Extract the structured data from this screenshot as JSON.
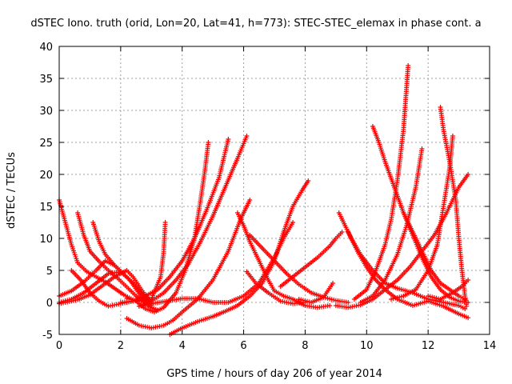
{
  "chart_data": {
    "type": "scatter",
    "title": "dSTEC Iono. truth (orid, Lon=20, Lat=41, h=773): STEC-STEC_elemax in phase cont. a",
    "xlabel": "GPS time / hours of day 206 of year 2014",
    "ylabel": "dSTEC  / TECUs",
    "xlim": [
      0,
      14
    ],
    "ylim": [
      -5,
      40
    ],
    "x_ticks": [
      "0",
      "2",
      "4",
      "6",
      "8",
      "10",
      "12",
      "14"
    ],
    "y_ticks": [
      "-5",
      "0",
      "5",
      "10",
      "15",
      "20",
      "25",
      "30",
      "35",
      "40"
    ],
    "grid": true,
    "marker": "+",
    "series": [
      {
        "color": "#ff0000",
        "points": [
          [
            0.0,
            16.0
          ],
          [
            0.2,
            12.5
          ],
          [
            0.4,
            9.0
          ],
          [
            0.6,
            6.2
          ],
          [
            0.9,
            4.8
          ],
          [
            1.2,
            4.0
          ],
          [
            1.5,
            3.2
          ],
          [
            1.8,
            2.2
          ],
          [
            2.1,
            1.2
          ],
          [
            2.4,
            0.4
          ]
        ]
      },
      {
        "color": "#ff0000",
        "points": [
          [
            0.6,
            14.0
          ],
          [
            0.8,
            10.5
          ],
          [
            1.0,
            8.0
          ],
          [
            1.3,
            6.4
          ],
          [
            1.6,
            5.0
          ],
          [
            1.9,
            3.8
          ],
          [
            2.2,
            2.4
          ],
          [
            2.5,
            1.0
          ],
          [
            2.8,
            0.0
          ]
        ]
      },
      {
        "color": "#ff0000",
        "points": [
          [
            1.1,
            12.5
          ],
          [
            1.3,
            9.5
          ],
          [
            1.5,
            7.5
          ],
          [
            1.8,
            5.8
          ],
          [
            2.1,
            4.4
          ],
          [
            2.4,
            3.0
          ],
          [
            2.7,
            1.2
          ],
          [
            3.0,
            0.2
          ]
        ]
      },
      {
        "color": "#ff0000",
        "points": [
          [
            0.0,
            1.0
          ],
          [
            0.4,
            1.8
          ],
          [
            0.8,
            3.2
          ],
          [
            1.2,
            5.0
          ],
          [
            1.5,
            6.5
          ],
          [
            1.8,
            5.8
          ],
          [
            2.1,
            4.4
          ],
          [
            2.4,
            3.0
          ],
          [
            2.7,
            1.2
          ],
          [
            3.0,
            -0.4
          ]
        ]
      },
      {
        "color": "#ff0000",
        "points": [
          [
            0.0,
            0.0
          ],
          [
            0.4,
            0.5
          ],
          [
            0.8,
            1.5
          ],
          [
            1.2,
            3.0
          ],
          [
            1.6,
            4.5
          ],
          [
            2.0,
            4.8
          ],
          [
            2.3,
            3.5
          ],
          [
            2.6,
            1.4
          ],
          [
            2.9,
            -0.6
          ],
          [
            3.2,
            -1.2
          ]
        ]
      },
      {
        "color": "#ff0000",
        "points": [
          [
            0.0,
            -0.2
          ],
          [
            0.6,
            0.4
          ],
          [
            1.0,
            1.2
          ],
          [
            1.4,
            2.6
          ],
          [
            1.8,
            4.0
          ],
          [
            2.2,
            5.0
          ],
          [
            2.4,
            4.0
          ],
          [
            2.7,
            1.8
          ],
          [
            3.0,
            0.0
          ]
        ]
      },
      {
        "color": "#ff0000",
        "points": [
          [
            0.4,
            5.0
          ],
          [
            0.7,
            3.5
          ],
          [
            1.0,
            1.5
          ],
          [
            1.3,
            0.2
          ],
          [
            1.6,
            -0.6
          ],
          [
            2.0,
            -0.2
          ],
          [
            2.4,
            0.2
          ]
        ]
      },
      {
        "color": "#ff0000",
        "points": [
          [
            2.2,
            -2.5
          ],
          [
            2.6,
            -3.6
          ],
          [
            3.0,
            -4.0
          ],
          [
            3.4,
            -3.6
          ],
          [
            3.7,
            -2.8
          ],
          [
            4.0,
            -1.5
          ],
          [
            4.5,
            0.5
          ],
          [
            5.0,
            3.5
          ],
          [
            5.5,
            8.0
          ],
          [
            5.9,
            13.0
          ],
          [
            6.2,
            16.0
          ]
        ]
      },
      {
        "color": "#ff0000",
        "points": [
          [
            3.6,
            -5.0
          ],
          [
            4.0,
            -4.0
          ],
          [
            4.5,
            -3.0
          ],
          [
            5.0,
            -2.2
          ],
          [
            5.4,
            -1.4
          ],
          [
            5.8,
            -0.5
          ],
          [
            6.2,
            1.0
          ],
          [
            6.6,
            3.0
          ],
          [
            7.0,
            6.5
          ],
          [
            7.3,
            11.0
          ],
          [
            7.6,
            15.0
          ],
          [
            7.9,
            17.5
          ],
          [
            8.1,
            19.0
          ]
        ]
      },
      {
        "color": "#ff0000",
        "points": [
          [
            2.5,
            0.2
          ],
          [
            2.8,
            -1.0
          ],
          [
            3.1,
            -1.5
          ],
          [
            3.4,
            -0.8
          ],
          [
            3.8,
            1.5
          ],
          [
            4.1,
            5.0
          ],
          [
            4.4,
            10.0
          ],
          [
            4.6,
            16.0
          ],
          [
            4.75,
            21.0
          ],
          [
            4.85,
            25.0
          ]
        ]
      },
      {
        "color": "#ff0000",
        "points": [
          [
            2.0,
            0.0
          ],
          [
            2.4,
            0.2
          ],
          [
            2.8,
            1.0
          ],
          [
            3.2,
            2.0
          ],
          [
            3.6,
            4.0
          ],
          [
            4.0,
            6.5
          ],
          [
            4.4,
            10.0
          ],
          [
            4.8,
            14.5
          ],
          [
            5.2,
            19.5
          ],
          [
            5.5,
            25.5
          ]
        ]
      },
      {
        "color": "#ff0000",
        "points": [
          [
            2.6,
            -0.6
          ],
          [
            3.0,
            0.2
          ],
          [
            3.4,
            1.5
          ],
          [
            3.8,
            3.5
          ],
          [
            4.2,
            6.0
          ],
          [
            4.6,
            9.5
          ],
          [
            5.0,
            13.5
          ],
          [
            5.4,
            18.0
          ],
          [
            5.8,
            22.5
          ],
          [
            6.1,
            26.0
          ]
        ]
      },
      {
        "color": "#ff0000",
        "points": [
          [
            2.2,
            0.6
          ],
          [
            2.6,
            0.2
          ],
          [
            3.0,
            0.5
          ],
          [
            3.3,
            4.0
          ],
          [
            3.4,
            8.0
          ],
          [
            3.45,
            12.5
          ]
        ]
      },
      {
        "color": "#ff0000",
        "points": [
          [
            2.6,
            -0.6
          ],
          [
            3.0,
            -0.2
          ],
          [
            3.5,
            0.2
          ],
          [
            4.0,
            0.6
          ],
          [
            4.5,
            0.6
          ],
          [
            5.0,
            0.0
          ],
          [
            5.5,
            0.0
          ],
          [
            6.0,
            1.0
          ],
          [
            6.5,
            3.0
          ],
          [
            7.0,
            7.0
          ],
          [
            7.3,
            10.0
          ],
          [
            7.6,
            12.5
          ]
        ]
      },
      {
        "color": "#ff0000",
        "points": [
          [
            5.8,
            14.0
          ],
          [
            6.0,
            12.0
          ],
          [
            6.2,
            9.5
          ],
          [
            6.4,
            7.5
          ],
          [
            6.6,
            5.5
          ],
          [
            6.8,
            3.5
          ],
          [
            7.0,
            1.8
          ],
          [
            7.3,
            1.0
          ],
          [
            7.6,
            0.5
          ],
          [
            8.0,
            -0.5
          ],
          [
            8.4,
            -0.8
          ],
          [
            8.8,
            -0.5
          ]
        ]
      },
      {
        "color": "#ff0000",
        "points": [
          [
            6.1,
            4.8
          ],
          [
            6.4,
            3.0
          ],
          [
            6.8,
            1.5
          ],
          [
            7.2,
            0.2
          ],
          [
            7.6,
            -0.2
          ],
          [
            8.0,
            0.0
          ]
        ]
      },
      {
        "color": "#ff0000",
        "points": [
          [
            6.2,
            10.5
          ],
          [
            6.6,
            8.5
          ],
          [
            7.0,
            6.5
          ],
          [
            7.4,
            4.5
          ],
          [
            7.8,
            2.8
          ],
          [
            8.2,
            1.5
          ],
          [
            8.6,
            0.8
          ],
          [
            9.0,
            0.3
          ],
          [
            9.4,
            0.0
          ]
        ]
      },
      {
        "color": "#ff0000",
        "points": [
          [
            7.2,
            2.5
          ],
          [
            7.6,
            4.0
          ],
          [
            8.0,
            5.5
          ],
          [
            8.4,
            7.0
          ],
          [
            8.8,
            8.8
          ],
          [
            9.0,
            10.0
          ],
          [
            9.2,
            11.0
          ]
        ]
      },
      {
        "color": "#ff0000",
        "points": [
          [
            7.8,
            0.5
          ],
          [
            8.2,
            0.0
          ],
          [
            8.6,
            0.8
          ],
          [
            8.9,
            3.0
          ]
        ]
      },
      {
        "color": "#ff0000",
        "points": [
          [
            9.1,
            14.0
          ],
          [
            9.3,
            12.0
          ],
          [
            9.5,
            10.0
          ],
          [
            9.8,
            7.5
          ],
          [
            10.2,
            5.0
          ],
          [
            10.6,
            3.0
          ],
          [
            11.0,
            2.2
          ],
          [
            11.5,
            1.5
          ],
          [
            12.0,
            0.5
          ],
          [
            12.5,
            0.0
          ],
          [
            13.0,
            -0.5
          ],
          [
            13.2,
            -1.0
          ]
        ]
      },
      {
        "color": "#ff0000",
        "points": [
          [
            9.4,
            11.0
          ],
          [
            9.7,
            8.0
          ],
          [
            10.0,
            5.5
          ],
          [
            10.3,
            3.5
          ],
          [
            10.6,
            2.0
          ],
          [
            11.0,
            0.5
          ],
          [
            11.5,
            -0.5
          ],
          [
            12.0,
            0.2
          ],
          [
            12.5,
            -0.6
          ],
          [
            13.0,
            -1.8
          ],
          [
            13.3,
            -2.4
          ]
        ]
      },
      {
        "color": "#ff0000",
        "points": [
          [
            9.0,
            -0.5
          ],
          [
            9.4,
            -0.8
          ],
          [
            9.8,
            -0.4
          ],
          [
            10.2,
            0.5
          ],
          [
            10.6,
            2.0
          ],
          [
            11.0,
            3.5
          ],
          [
            11.4,
            5.5
          ],
          [
            11.8,
            8.0
          ],
          [
            12.2,
            10.5
          ],
          [
            12.6,
            14.0
          ],
          [
            13.0,
            18.0
          ],
          [
            13.3,
            20.0
          ]
        ]
      },
      {
        "color": "#ff0000",
        "points": [
          [
            10.2,
            27.5
          ],
          [
            10.4,
            25.0
          ],
          [
            10.6,
            22.0
          ],
          [
            10.9,
            18.0
          ],
          [
            11.2,
            14.0
          ],
          [
            11.5,
            10.5
          ],
          [
            11.8,
            7.0
          ],
          [
            12.1,
            4.0
          ],
          [
            12.4,
            2.0
          ],
          [
            12.7,
            0.8
          ],
          [
            13.0,
            0.2
          ],
          [
            13.3,
            0.0
          ]
        ]
      },
      {
        "color": "#ff0000",
        "points": [
          [
            9.6,
            0.5
          ],
          [
            10.0,
            2.0
          ],
          [
            10.3,
            5.0
          ],
          [
            10.6,
            9.0
          ],
          [
            10.8,
            13.0
          ],
          [
            11.0,
            19.0
          ],
          [
            11.2,
            27.0
          ],
          [
            11.35,
            37.0
          ]
        ]
      },
      {
        "color": "#ff0000",
        "points": [
          [
            9.8,
            0.0
          ],
          [
            10.2,
            1.0
          ],
          [
            10.6,
            3.5
          ],
          [
            11.0,
            7.5
          ],
          [
            11.3,
            12.0
          ],
          [
            11.6,
            18.0
          ],
          [
            11.8,
            24.0
          ]
        ]
      },
      {
        "color": "#ff0000",
        "points": [
          [
            11.2,
            14.0
          ],
          [
            11.5,
            11.0
          ],
          [
            11.8,
            8.0
          ],
          [
            12.1,
            5.0
          ],
          [
            12.4,
            3.0
          ],
          [
            12.7,
            2.0
          ],
          [
            13.0,
            1.0
          ],
          [
            13.2,
            0.5
          ]
        ]
      },
      {
        "color": "#ff0000",
        "points": [
          [
            12.4,
            30.5
          ],
          [
            12.5,
            27.0
          ],
          [
            12.7,
            22.0
          ],
          [
            12.9,
            16.0
          ],
          [
            13.0,
            10.0
          ],
          [
            13.1,
            5.0
          ],
          [
            13.2,
            1.0
          ],
          [
            13.25,
            -0.6
          ]
        ]
      },
      {
        "color": "#ff0000",
        "points": [
          [
            10.8,
            0.5
          ],
          [
            11.2,
            1.0
          ],
          [
            11.6,
            2.0
          ],
          [
            12.0,
            5.0
          ],
          [
            12.3,
            9.0
          ],
          [
            12.5,
            15.0
          ],
          [
            12.7,
            21.0
          ],
          [
            12.8,
            26.0
          ]
        ]
      },
      {
        "color": "#ff0000",
        "points": [
          [
            12.0,
            1.0
          ],
          [
            12.4,
            0.5
          ],
          [
            12.8,
            1.5
          ],
          [
            13.1,
            2.5
          ],
          [
            13.3,
            3.5
          ]
        ]
      }
    ]
  }
}
